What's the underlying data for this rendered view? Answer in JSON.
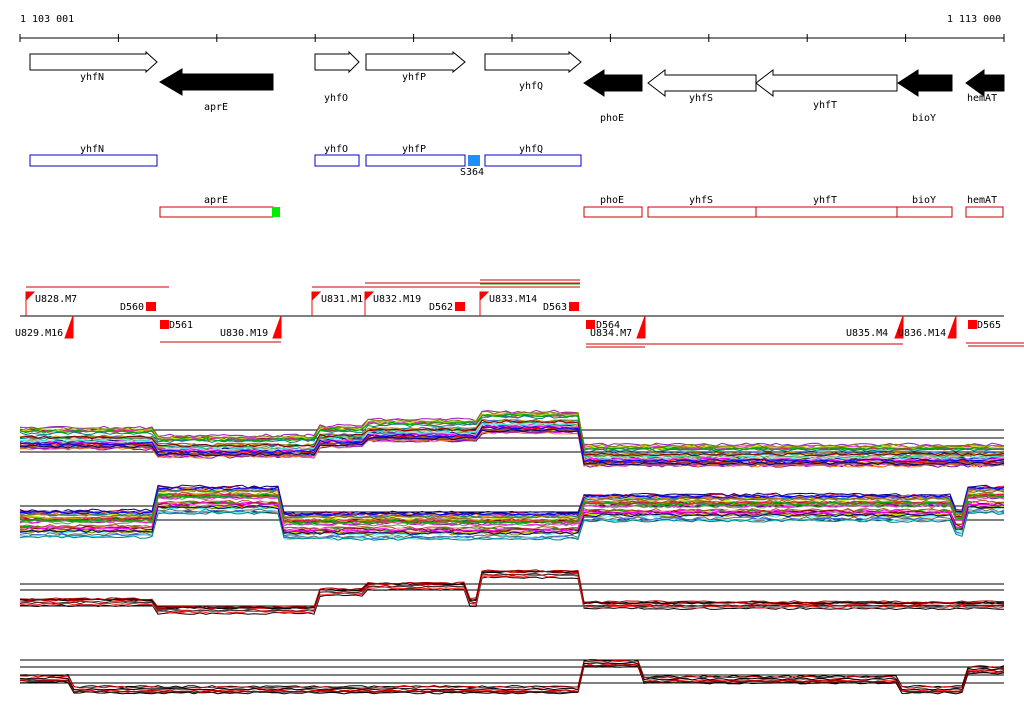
{
  "coords": {
    "start": "1 103 001",
    "end": "1 113 000"
  },
  "genes": [
    {
      "name": "yhfN",
      "strand": "+"
    },
    {
      "name": "aprE",
      "strand": "-"
    },
    {
      "name": "yhfO",
      "strand": "+"
    },
    {
      "name": "yhfP",
      "strand": "+"
    },
    {
      "name": "yhfQ",
      "strand": "+"
    },
    {
      "name": "phoE",
      "strand": "-"
    },
    {
      "name": "yhfS",
      "strand": "-"
    },
    {
      "name": "yhfT",
      "strand": "-"
    },
    {
      "name": "bioY",
      "strand": "-"
    },
    {
      "name": "hemAT",
      "strand": "-"
    }
  ],
  "blue_track": [
    "yhfN",
    "yhfO",
    "yhfP",
    "yhfQ"
  ],
  "blue_marker": "S364",
  "red_track": [
    "aprE",
    "phoE",
    "yhfS",
    "yhfT",
    "bioY",
    "hemAT"
  ],
  "upper_labels": [
    "U828.M7",
    "D560",
    "U831.M1",
    "U832.M19",
    "D562",
    "U833.M14",
    "D563"
  ],
  "lower_labels": [
    "U829.M16",
    "D561",
    "U830.M19",
    "D564",
    "U834.M7",
    "U835.M4",
    "U836.M14",
    "D565"
  ],
  "colors": {
    "gene_fill_plus": "#ffffff",
    "gene_fill_minus": "#000000",
    "blue_track": "#0000cc",
    "blue_marker": "#1e90ff",
    "red_track": "#cc0000",
    "green_marker": "#00ee00",
    "marker_red": "#ff0000"
  }
}
